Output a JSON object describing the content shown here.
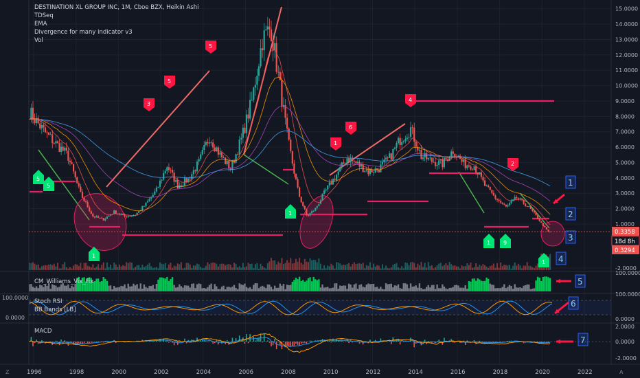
{
  "legend": {
    "title": "DESTINATION XL GROUP INC, 1M, Cboe BZX, Heikin Ashi",
    "indicators": [
      "TDSeq",
      "EMA",
      "Divergence for many indicator v3",
      "Vol"
    ]
  },
  "panes": {
    "williams_label": "CM_Williams_Vix_Fix",
    "stoch_label": "Stoch RSI",
    "bbands_label": "BB Bands [LB]",
    "macd_label": "MACD",
    "stoch_left_axis": [
      "100.0000",
      "0.0000"
    ]
  },
  "price_tags": {
    "current": "0.3358",
    "countdown": "18d 8h",
    "low": "0.3294"
  },
  "corner_labels": {
    "left": "Z",
    "right": "A"
  },
  "colors": {
    "background": "#131722",
    "grid": "#1e222d",
    "up": "#26a69a",
    "down": "#ef5350",
    "pink": "#e91e63",
    "green_marker": "#00e676",
    "arrow": "#ff1744",
    "box_border": "#2962ff"
  },
  "annotations": {
    "boxes": [
      "1",
      "2",
      "3",
      "4",
      "5",
      "6",
      "7"
    ],
    "red_markers": [
      "3",
      "5",
      "5",
      "1",
      "6",
      "4",
      "2"
    ],
    "green_markers": [
      "5",
      "5",
      "1",
      "1",
      "1",
      "9",
      "1"
    ]
  },
  "chart_data": [
    {
      "type": "candlestick",
      "title": "DESTINATION XL GROUP INC, 1M, Cboe BZX, Heikin Ashi",
      "x_ticks": [
        "1996",
        "1998",
        "2000",
        "2002",
        "2004",
        "2006",
        "2008",
        "2010",
        "2012",
        "2014",
        "2016",
        "2018",
        "2020",
        "2022"
      ],
      "y_ticks": [
        "15.0000",
        "14.0000",
        "13.0000",
        "12.0000",
        "11.0000",
        "10.0000",
        "9.0000",
        "8.0000",
        "7.0000",
        "6.0000",
        "5.0000",
        "4.0000",
        "3.0000",
        "2.0000",
        "1.0000",
        "-2.0000"
      ],
      "keypoints": {
        "x": [
          1995.8,
          1996.5,
          1997.0,
          1997.6,
          1998.2,
          1998.8,
          1999.3,
          1999.8,
          2000.3,
          2000.8,
          2001.3,
          2001.8,
          2002.3,
          2002.8,
          2003.3,
          2003.8,
          2004.3,
          2004.8,
          2005.3,
          2005.8,
          2006.3,
          2006.8,
          2007.2,
          2007.6,
          2008.0,
          2008.5,
          2008.9,
          2009.3,
          2009.8,
          2010.3,
          2010.8,
          2011.3,
          2011.8,
          2012.3,
          2012.8,
          2013.3,
          2013.8,
          2014.3,
          2014.8,
          2015.3,
          2015.8,
          2016.3,
          2016.8,
          2017.3,
          2017.8,
          2018.3,
          2018.8,
          2019.3,
          2019.8,
          2020.3
        ],
        "y": [
          8.3,
          7.0,
          6.3,
          5.5,
          3.0,
          1.5,
          1.3,
          1.8,
          1.5,
          1.6,
          2.3,
          3.2,
          4.8,
          3.5,
          3.9,
          5.0,
          6.7,
          5.5,
          4.6,
          6.5,
          9.0,
          13.0,
          13.8,
          10.2,
          6.5,
          3.0,
          1.5,
          2.0,
          3.2,
          4.2,
          5.3,
          4.9,
          4.4,
          4.6,
          5.3,
          6.5,
          7.2,
          5.4,
          5.1,
          4.9,
          5.8,
          4.9,
          4.8,
          3.5,
          2.7,
          2.1,
          2.7,
          2.2,
          1.4,
          0.34
        ]
      },
      "last_price": 0.3358,
      "low_price": 0.3294
    },
    {
      "type": "histogram",
      "title": "CM_Williams_Vix_Fix",
      "y_ticks": [
        "100.0000"
      ]
    },
    {
      "type": "line",
      "title": "Stoch RSI",
      "y_ticks": [
        "100.0000",
        "0.0000"
      ]
    },
    {
      "type": "histogram",
      "title": "MACD",
      "y_ticks": [
        "2.0000",
        "0.0000",
        "-2.0000"
      ]
    }
  ]
}
